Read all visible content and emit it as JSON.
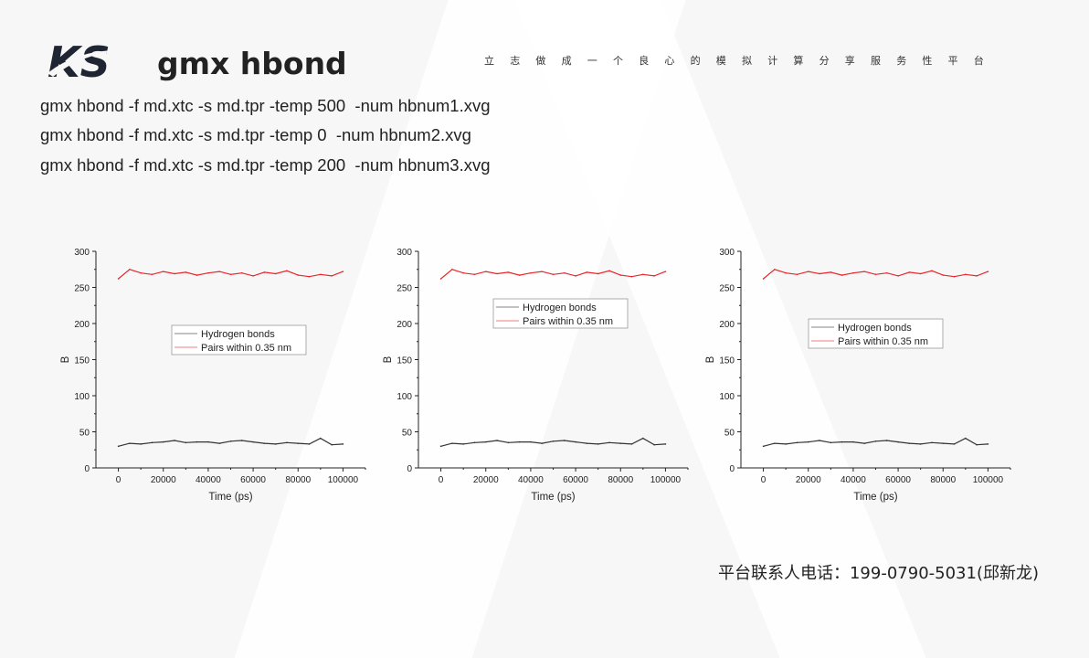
{
  "header": {
    "logo_text": "KS",
    "title": "gmx hbond",
    "slogan": "立志做成一个良心的模拟计算分享服务性平台"
  },
  "commands": [
    "gmx hbond -f md.xtc -s md.tpr -temp 500  -num hbnum1.xvg",
    "gmx hbond -f md.xtc -s md.tpr -temp 0  -num hbnum2.xvg",
    "gmx hbond -f md.xtc -s md.tpr -temp 200  -num hbnum3.xvg"
  ],
  "footer": {
    "contact": "平台联系人电话：199-0790-5031(邱新龙)"
  },
  "colors": {
    "hbonds": "#333333",
    "pairs": "#e8262b"
  },
  "chart_data": [
    {
      "type": "line",
      "xlabel": "Time (ps)",
      "ylabel": "B",
      "xlim": [
        -10000,
        110000
      ],
      "ylim": [
        0,
        300
      ],
      "xticks": [
        0,
        20000,
        40000,
        60000,
        80000,
        100000
      ],
      "yticks": [
        0,
        50,
        100,
        150,
        200,
        250,
        300
      ],
      "legend": "center",
      "x": [
        0,
        5000,
        10000,
        15000,
        20000,
        25000,
        30000,
        35000,
        40000,
        45000,
        50000,
        55000,
        60000,
        65000,
        70000,
        75000,
        80000,
        85000,
        90000,
        95000,
        100000
      ],
      "series": [
        {
          "name": "Hydrogen bonds",
          "values": [
            30,
            34,
            33,
            35,
            36,
            38,
            35,
            36,
            36,
            34,
            37,
            38,
            36,
            34,
            33,
            35,
            34,
            33,
            41,
            32,
            33
          ]
        },
        {
          "name": "Pairs within 0.35 nm",
          "values": [
            262,
            275,
            270,
            268,
            272,
            269,
            271,
            267,
            270,
            272,
            268,
            270,
            266,
            271,
            269,
            273,
            267,
            265,
            268,
            266,
            272
          ]
        }
      ]
    },
    {
      "type": "line",
      "xlabel": "Time (ps)",
      "ylabel": "B",
      "xlim": [
        -10000,
        110000
      ],
      "ylim": [
        0,
        300
      ],
      "xticks": [
        0,
        20000,
        40000,
        60000,
        80000,
        100000
      ],
      "yticks": [
        0,
        50,
        100,
        150,
        200,
        250,
        300
      ],
      "legend": "upper-center",
      "x": [
        0,
        5000,
        10000,
        15000,
        20000,
        25000,
        30000,
        35000,
        40000,
        45000,
        50000,
        55000,
        60000,
        65000,
        70000,
        75000,
        80000,
        85000,
        90000,
        95000,
        100000
      ],
      "series": [
        {
          "name": "Hydrogen bonds",
          "values": [
            30,
            34,
            33,
            35,
            36,
            38,
            35,
            36,
            36,
            34,
            37,
            38,
            36,
            34,
            33,
            35,
            34,
            33,
            41,
            32,
            33
          ]
        },
        {
          "name": "Pairs within 0.35 nm",
          "values": [
            262,
            275,
            270,
            268,
            272,
            269,
            271,
            267,
            270,
            272,
            268,
            270,
            266,
            271,
            269,
            273,
            267,
            265,
            268,
            266,
            272
          ]
        }
      ]
    },
    {
      "type": "line",
      "xlabel": "Time (ps)",
      "ylabel": "B",
      "xlim": [
        -10000,
        110000
      ],
      "ylim": [
        0,
        300
      ],
      "xticks": [
        0,
        20000,
        40000,
        60000,
        80000,
        100000
      ],
      "yticks": [
        0,
        50,
        100,
        150,
        200,
        250,
        300
      ],
      "legend": "center",
      "x": [
        0,
        5000,
        10000,
        15000,
        20000,
        25000,
        30000,
        35000,
        40000,
        45000,
        50000,
        55000,
        60000,
        65000,
        70000,
        75000,
        80000,
        85000,
        90000,
        95000,
        100000
      ],
      "series": [
        {
          "name": "Hydrogen bonds",
          "values": [
            30,
            34,
            33,
            35,
            36,
            38,
            35,
            36,
            36,
            34,
            37,
            38,
            36,
            34,
            33,
            35,
            34,
            33,
            41,
            32,
            33
          ]
        },
        {
          "name": "Pairs within 0.35 nm",
          "values": [
            262,
            275,
            270,
            268,
            272,
            269,
            271,
            267,
            270,
            272,
            268,
            270,
            266,
            271,
            269,
            273,
            267,
            265,
            268,
            266,
            272
          ]
        }
      ]
    }
  ]
}
